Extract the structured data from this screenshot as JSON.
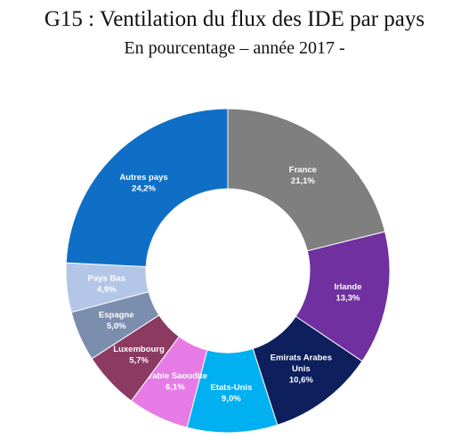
{
  "title": "G15 : Ventilation du flux des IDE par pays",
  "subtitle": "En pourcentage – année 2017 -",
  "chart_data": {
    "type": "pie",
    "donut": true,
    "title": "G15 : Ventilation du flux des IDE par pays",
    "subtitle": "En pourcentage – année 2017 -",
    "unit": "%",
    "slices": [
      {
        "label_lines": [
          "France"
        ],
        "value_label": "21,1%",
        "value": 21.1,
        "color": "#7f7f7f",
        "text_color": "#ffffff"
      },
      {
        "label_lines": [
          "Irlande"
        ],
        "value_label": "13,3%",
        "value": 13.3,
        "color": "#7030a0",
        "text_color": "#ffffff"
      },
      {
        "label_lines": [
          "Emirats Arabes",
          "Unis"
        ],
        "value_label": "10,6%",
        "value": 10.6,
        "color": "#0d1f5c",
        "text_color": "#ffffff"
      },
      {
        "label_lines": [
          "Etats-Unis"
        ],
        "value_label": "9,0%",
        "value": 9.0,
        "color": "#00b0f0",
        "text_color": "#ffffff"
      },
      {
        "label_lines": [
          "Arabie Saoudite"
        ],
        "value_label": "6,1%",
        "value": 6.1,
        "color": "#e77be6",
        "text_color": "#ffffff"
      },
      {
        "label_lines": [
          "Luxembourg"
        ],
        "value_label": "5,7%",
        "value": 5.7,
        "color": "#8b3a62",
        "text_color": "#ffffff"
      },
      {
        "label_lines": [
          "Espagne"
        ],
        "value_label": "5,0%",
        "value": 5.0,
        "color": "#7b8eae",
        "text_color": "#ffffff"
      },
      {
        "label_lines": [
          "Pays Bas"
        ],
        "value_label": "4,9%",
        "value": 4.9,
        "color": "#b4c6e7",
        "text_color": "#ffffff"
      },
      {
        "label_lines": [
          "Autres pays"
        ],
        "value_label": "24,2%",
        "value": 24.2,
        "color": "#0f6fc6",
        "text_color": "#ffffff"
      }
    ]
  }
}
